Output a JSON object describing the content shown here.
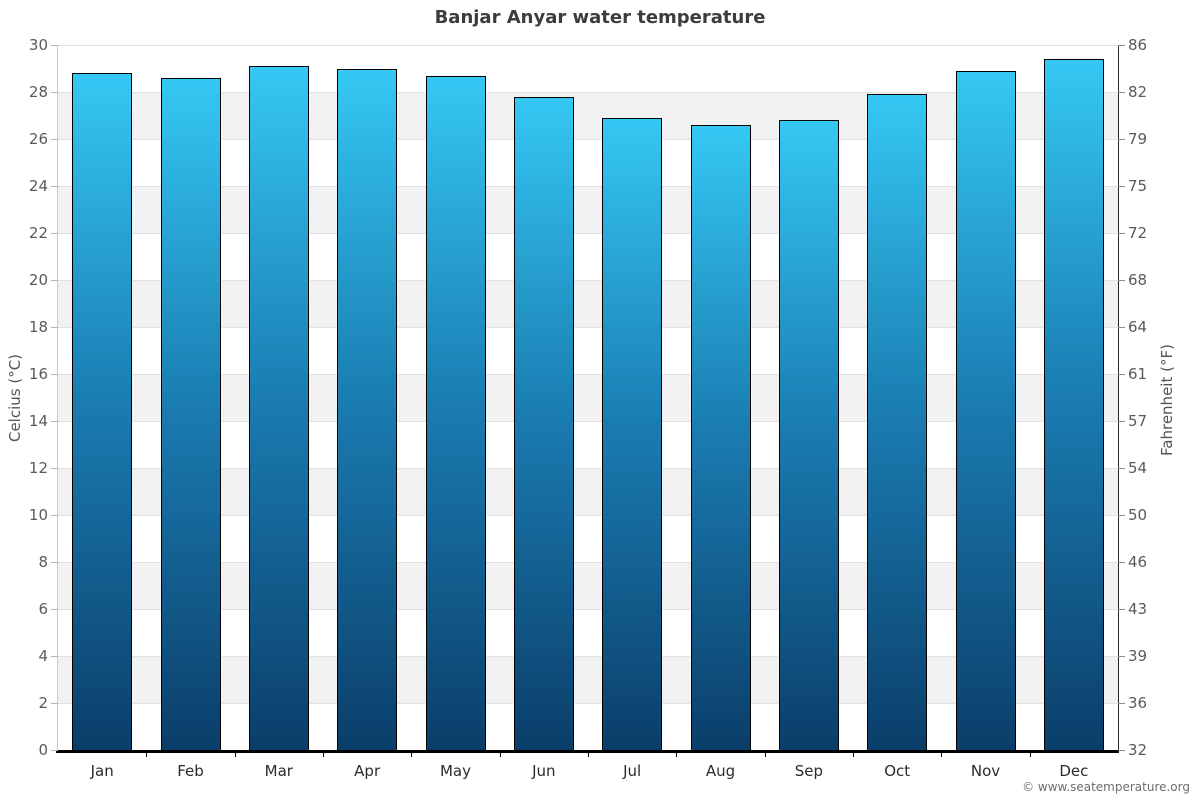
{
  "title": "Banjar Anyar water temperature",
  "credit": "© www.seatemperature.org",
  "axes": {
    "left_title": "Celcius (°C)",
    "right_title": "Fahrenheit (°F)",
    "celsius_ticks": [
      30,
      28,
      26,
      24,
      22,
      20,
      18,
      16,
      14,
      12,
      10,
      8,
      6,
      4,
      2,
      0
    ],
    "fahrenheit_ticks": [
      "86",
      "82",
      "79",
      "75",
      "72",
      "68",
      "64",
      "61",
      "57",
      "54",
      "50",
      "46",
      "43",
      "39",
      "36",
      "32"
    ]
  },
  "chart_data": {
    "type": "bar",
    "title": "Banjar Anyar water temperature",
    "categories": [
      "Jan",
      "Feb",
      "Mar",
      "Apr",
      "May",
      "Jun",
      "Jul",
      "Aug",
      "Sep",
      "Oct",
      "Nov",
      "Dec"
    ],
    "values": [
      28.8,
      28.6,
      29.1,
      29.0,
      28.7,
      27.8,
      26.9,
      26.6,
      26.8,
      27.9,
      28.9,
      29.4
    ],
    "ylabel": "Celcius (°C)",
    "ylabel_right": "Fahrenheit (°F)",
    "ylim": [
      0,
      30
    ],
    "tick_step": 2,
    "grid": "alternating-bands",
    "legend": "none",
    "colors": {
      "bar_gradient_top": "#35c8f3",
      "bar_gradient_mid": "#1a7db2",
      "bar_gradient_bottom": "#0b3e6a",
      "bar_border": "#000000",
      "band_gray": "#f2f2f2",
      "gridline": "#e2e2e2",
      "title_text": "#3c3c3c",
      "axis_label_text": "#5a5a5a"
    }
  }
}
